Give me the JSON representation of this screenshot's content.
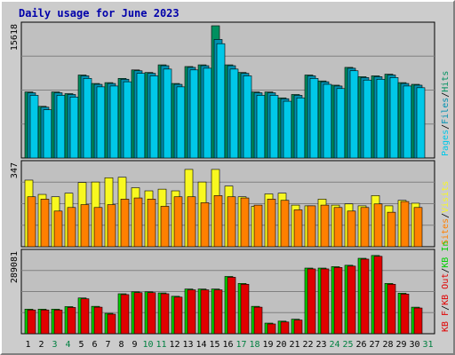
{
  "title": "Daily usage for June 2023",
  "colors": {
    "pages": "#00c8e8",
    "files": "#0090b0",
    "hits": "#009060",
    "visits": "#f8f820",
    "sites": "#ff8000",
    "kb_in": "#00d000",
    "kb_out": "#e00000",
    "weekend": "#008040",
    "weekday": "#0000a0",
    "axis_label": "#000000"
  },
  "chart_data": [
    {
      "type": "bar",
      "panel": "hits-files-pages",
      "scale_label": "15618",
      "ylim": [
        0,
        15618
      ],
      "legend": [
        {
          "text": "Pages",
          "color_key": "pages"
        },
        {
          "text": "/",
          "color_key": "axis_label"
        },
        {
          "text": "Files",
          "color_key": "files"
        },
        {
          "text": "/",
          "color_key": "axis_label"
        },
        {
          "text": "Hits",
          "color_key": "hits"
        }
      ],
      "categories": [
        "1",
        "2",
        "3",
        "4",
        "5",
        "6",
        "7",
        "8",
        "9",
        "10",
        "11",
        "12",
        "13",
        "14",
        "15",
        "16",
        "17",
        "18",
        "19",
        "20",
        "21",
        "22",
        "23",
        "24",
        "25",
        "26",
        "27",
        "28",
        "29",
        "30"
      ],
      "series": [
        {
          "key": "hits",
          "values": [
            7800,
            6100,
            7800,
            7600,
            9800,
            8800,
            8900,
            9400,
            10400,
            10100,
            11000,
            8800,
            10800,
            11000,
            15618,
            11000,
            10100,
            7800,
            7800,
            7100,
            7500,
            9800,
            9100,
            8600,
            10700,
            9600,
            9700,
            9900,
            8900,
            8700
          ]
        },
        {
          "key": "files",
          "values": [
            7700,
            6000,
            7700,
            7500,
            9700,
            8700,
            8800,
            9300,
            10300,
            10000,
            10900,
            8700,
            10700,
            10900,
            14000,
            10900,
            10000,
            7700,
            7700,
            7000,
            7400,
            9700,
            9000,
            8500,
            10600,
            9500,
            9600,
            9800,
            8800,
            8600
          ]
        },
        {
          "key": "pages",
          "values": [
            7400,
            5700,
            7400,
            7200,
            9400,
            8400,
            8500,
            9000,
            10000,
            9700,
            10500,
            8400,
            10400,
            10600,
            13500,
            10500,
            9700,
            7400,
            7400,
            6700,
            7100,
            9400,
            8700,
            8200,
            10300,
            9200,
            9300,
            9500,
            8500,
            8300
          ]
        }
      ]
    },
    {
      "type": "bar",
      "panel": "visits-sites",
      "scale_label": "347",
      "ylim": [
        0,
        347
      ],
      "legend": [
        {
          "text": "Sites",
          "color_key": "sites"
        },
        {
          "text": "/",
          "color_key": "axis_label"
        },
        {
          "text": "Visits",
          "color_key": "visits"
        }
      ],
      "categories": [
        "1",
        "2",
        "3",
        "4",
        "5",
        "6",
        "7",
        "8",
        "9",
        "10",
        "11",
        "12",
        "13",
        "14",
        "15",
        "16",
        "17",
        "18",
        "19",
        "20",
        "21",
        "22",
        "23",
        "24",
        "25",
        "26",
        "27",
        "28",
        "29",
        "30"
      ],
      "series": [
        {
          "key": "visits",
          "values": [
            280,
            220,
            210,
            225,
            270,
            272,
            290,
            292,
            248,
            235,
            242,
            235,
            325,
            272,
            325,
            255,
            210,
            170,
            222,
            225,
            175,
            172,
            200,
            175,
            180,
            172,
            215,
            172,
            195,
            183
          ]
        },
        {
          "key": "sites",
          "values": [
            210,
            200,
            150,
            165,
            177,
            165,
            177,
            200,
            205,
            200,
            170,
            210,
            210,
            185,
            215,
            210,
            205,
            175,
            200,
            195,
            155,
            172,
            175,
            165,
            150,
            165,
            180,
            145,
            190,
            165
          ]
        }
      ]
    },
    {
      "type": "bar",
      "panel": "kbytes",
      "scale_label": "289081",
      "ylim": [
        0,
        289081
      ],
      "legend": [
        {
          "text": "KB F",
          "color_key": "kb_out"
        },
        {
          "text": "/",
          "color_key": "axis_label"
        },
        {
          "text": "KB Out",
          "color_key": "kb_out"
        },
        {
          "text": "/",
          "color_key": "axis_label"
        },
        {
          "text": "KB In",
          "color_key": "kb_in"
        }
      ],
      "categories": [
        "1",
        "2",
        "3",
        "4",
        "5",
        "6",
        "7",
        "8",
        "9",
        "10",
        "11",
        "12",
        "13",
        "14",
        "15",
        "16",
        "17",
        "18",
        "19",
        "20",
        "21",
        "22",
        "23",
        "24",
        "25",
        "26",
        "27",
        "28",
        "29",
        "30"
      ],
      "series": [
        {
          "key": "kb_in",
          "values": [
            88000,
            88000,
            88000,
            97000,
            128000,
            98000,
            73000,
            143000,
            150000,
            150000,
            146000,
            134000,
            160000,
            160000,
            160000,
            205000,
            180000,
            98000,
            38000,
            45000,
            52000,
            235000,
            235000,
            240000,
            245000,
            270000,
            280000,
            180000,
            145000,
            95000
          ]
        },
        {
          "key": "kb_out",
          "values": [
            85000,
            85000,
            85000,
            94000,
            125000,
            95000,
            70000,
            140000,
            147000,
            147000,
            143000,
            131000,
            157000,
            157000,
            157000,
            202000,
            177000,
            95000,
            35000,
            42000,
            49000,
            232000,
            232000,
            237000,
            242000,
            267000,
            277000,
            177000,
            142000,
            92000
          ]
        }
      ]
    }
  ],
  "x_axis": {
    "labels": [
      "1",
      "2",
      "3",
      "4",
      "5",
      "6",
      "7",
      "8",
      "9",
      "10",
      "11",
      "12",
      "13",
      "14",
      "15",
      "16",
      "17",
      "18",
      "19",
      "20",
      "21",
      "22",
      "23",
      "24",
      "25",
      "26",
      "27",
      "28",
      "29",
      "30",
      "31"
    ],
    "weekend": [
      3,
      4,
      10,
      11,
      17,
      18,
      24,
      25,
      31
    ]
  }
}
